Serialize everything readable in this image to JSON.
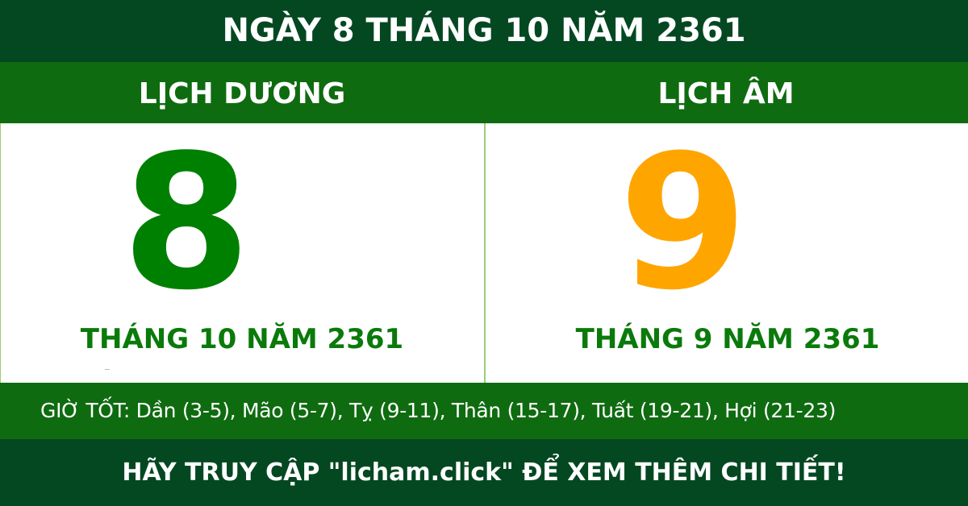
{
  "title": "NGÀY 8 THÁNG 10 NĂM 2361",
  "solar": {
    "heading": "LỊCH DƯƠNG",
    "day": "8",
    "month_year": "THÁNG 10 NĂM 2361"
  },
  "lunar": {
    "heading": "LỊCH ÂM",
    "day": "9",
    "month_year": "THÁNG 9 NĂM 2361"
  },
  "good_hours": "GIỜ TỐT: Dần (3-5), Mão (5-7), Tỵ (9-11), Thân (15-17), Tuất (19-21), Hợi (21-23)",
  "footer": "HÃY TRUY CẬP \"licham.click\" ĐỂ XEM THÊM CHI TIẾT!",
  "colors": {
    "dark_green": "#044822",
    "band_green": "#0f6b10",
    "solar_day": "#008000",
    "lunar_day": "#ffa500"
  }
}
